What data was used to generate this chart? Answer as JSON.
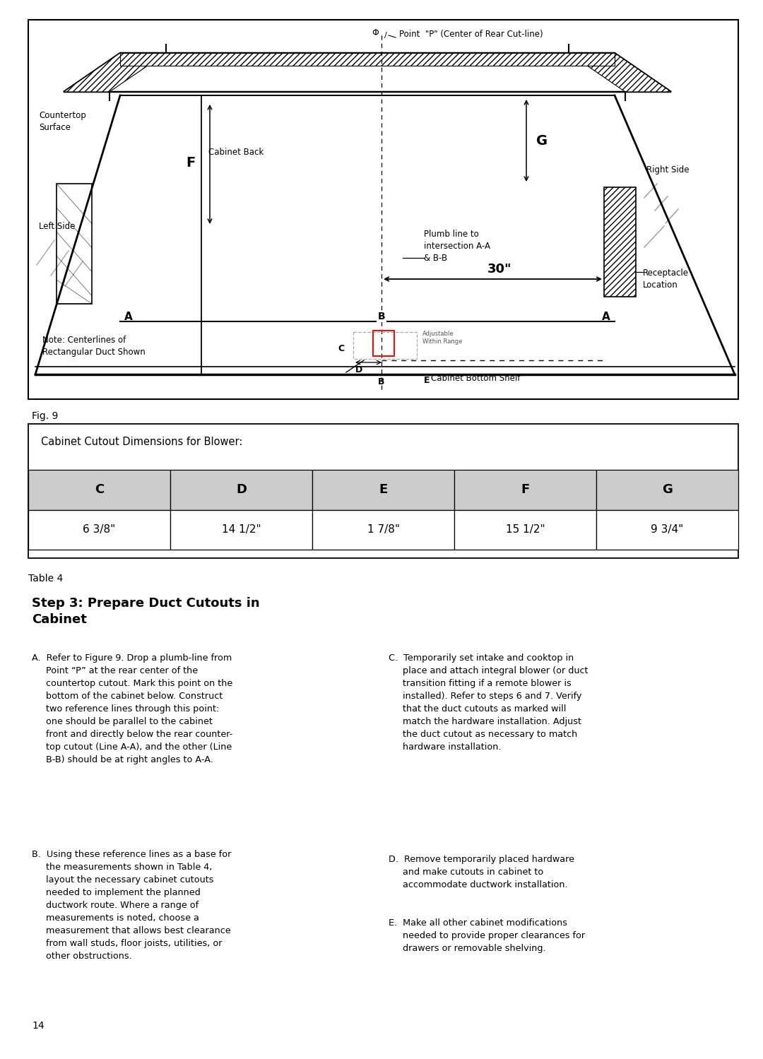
{
  "bg_color": "#ffffff",
  "page_width": 10.8,
  "page_height": 14.99,
  "fig_caption": "Fig. 9",
  "table_caption": "Table 4",
  "table_title": "Cabinet Cutout Dimensions for Blower:",
  "table_headers": [
    "C",
    "D",
    "E",
    "F",
    "G"
  ],
  "table_values": [
    "6 3/8\"",
    "14 1/2\"",
    "1 7/8\"",
    "15 1/2\"",
    "9 3/4\""
  ],
  "step_title": "Step 3: Prepare Duct Cutouts in\nCabinet",
  "text_A": "A.  Refer to Figure 9. Drop a plumb-line from\n     Point “P” at the rear center of the\n     countertop cutout. Mark this point on the\n     bottom of the cabinet below. Construct\n     two reference lines through this point:\n     one should be parallel to the cabinet\n     front and directly below the rear counter-\n     top cutout (Line A-A), and the other (Line\n     B-B) should be at right angles to A-A.",
  "text_B": "B.  Using these reference lines as a base for\n     the measurements shown in Table 4,\n     layout the necessary cabinet cutouts\n     needed to implement the planned\n     ductwork route. Where a range of\n     measurements is noted, choose a\n     measurement that allows best clearance\n     from wall studs, floor joists, utilities, or\n     other obstructions.",
  "text_C": "C.  Temporarily set intake and cooktop in\n     place and attach integral blower (or duct\n     transition fitting if a remote blower is\n     installed). Refer to steps 6 and 7. Verify\n     that the duct cutouts as marked will\n     match the hardware installation. Adjust\n     the duct cutout as necessary to match\n     hardware installation.",
  "text_D": "D.  Remove temporarily placed hardware\n     and make cutouts in cabinet to\n     accommodate ductwork installation.",
  "text_E": "E.  Make all other cabinet modifications\n     needed to provide proper clearances for\n     drawers or removable shelving.",
  "page_number": "14"
}
